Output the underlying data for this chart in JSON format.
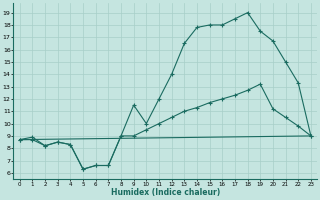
{
  "title": "",
  "xlabel": "Humidex (Indice chaleur)",
  "ylabel": "",
  "xlim": [
    -0.5,
    23.5
  ],
  "ylim": [
    5.5,
    19.8
  ],
  "xticks": [
    0,
    1,
    2,
    3,
    4,
    5,
    6,
    7,
    8,
    9,
    10,
    11,
    12,
    13,
    14,
    15,
    16,
    17,
    18,
    19,
    20,
    21,
    22,
    23
  ],
  "yticks": [
    6,
    7,
    8,
    9,
    10,
    11,
    12,
    13,
    14,
    15,
    16,
    17,
    18,
    19
  ],
  "line_color": "#1a6b60",
  "bg_color": "#c5e5e0",
  "grid_color": "#a8cfc8",
  "line1_x": [
    0,
    1,
    2,
    3,
    4,
    5,
    6,
    7,
    8,
    9,
    10,
    11,
    12,
    13,
    14,
    15,
    16,
    17,
    18,
    19,
    20,
    21,
    22,
    23
  ],
  "line1_y": [
    8.7,
    8.9,
    8.2,
    8.5,
    8.3,
    6.3,
    6.6,
    6.6,
    9.0,
    11.5,
    10.0,
    12.0,
    14.0,
    16.5,
    17.8,
    18.0,
    18.0,
    18.5,
    19.0,
    17.5,
    16.7,
    15.0,
    13.3,
    9.0
  ],
  "line2_x": [
    0,
    1,
    2,
    3,
    4,
    5,
    6,
    7,
    8,
    9,
    10,
    11,
    12,
    13,
    14,
    15,
    16,
    17,
    18,
    19,
    20,
    21,
    22,
    23
  ],
  "line2_y": [
    8.7,
    8.7,
    8.2,
    8.5,
    8.3,
    6.3,
    6.6,
    6.6,
    9.0,
    9.0,
    9.5,
    10.0,
    10.5,
    11.0,
    11.3,
    11.7,
    12.0,
    12.3,
    12.7,
    13.2,
    11.2,
    10.5,
    9.8,
    9.0
  ],
  "line3_x": [
    0,
    23
  ],
  "line3_y": [
    8.7,
    9.0
  ],
  "figsize": [
    3.2,
    2.0
  ],
  "dpi": 100
}
